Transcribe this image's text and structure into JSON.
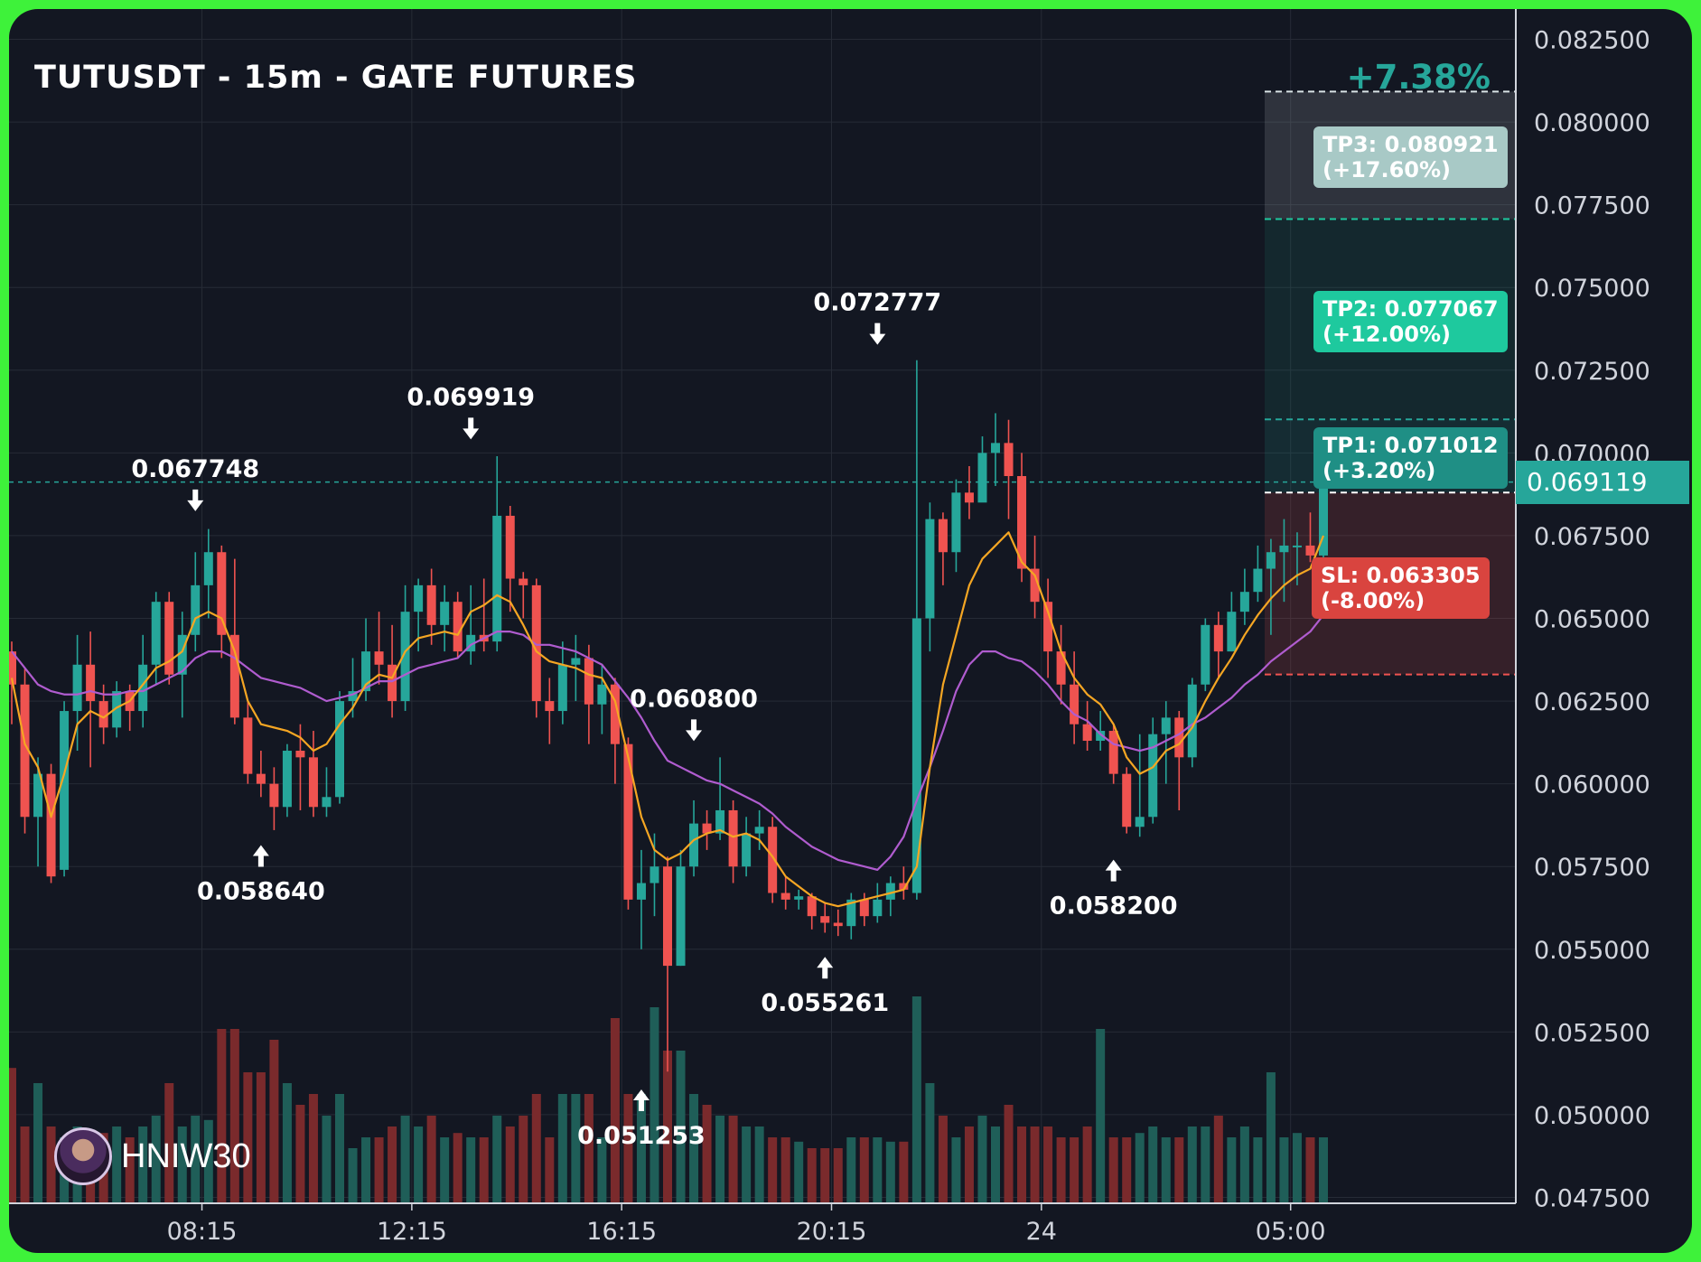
{
  "chart_data": {
    "type": "candlestick",
    "title": "TUTUSDT - 15m - GATE FUTURES",
    "change_label": "+7.38%",
    "current_price": 0.069119,
    "current_price_label": "0.069119",
    "y_ticks": [
      "0.082500",
      "0.080000",
      "0.077500",
      "0.075000",
      "0.072500",
      "0.070000",
      "0.067500",
      "0.065000",
      "0.062500",
      "0.060000",
      "0.057500",
      "0.055000",
      "0.052500",
      "0.050000",
      "0.047500"
    ],
    "y_tick_values": [
      0.0825,
      0.08,
      0.0775,
      0.075,
      0.0725,
      0.07,
      0.0675,
      0.065,
      0.0625,
      0.06,
      0.0575,
      0.055,
      0.0525,
      0.05,
      0.0475
    ],
    "ylim": [
      0.047,
      0.0835
    ],
    "x_ticks": [
      {
        "index": 14.5,
        "label": "08:15"
      },
      {
        "index": 30.5,
        "label": "12:15"
      },
      {
        "index": 46.5,
        "label": "16:15"
      },
      {
        "index": 62.5,
        "label": "20:15"
      },
      {
        "index": 78.5,
        "label": "24"
      },
      {
        "index": 97.5,
        "label": "05:00"
      }
    ],
    "levels": {
      "tp3": {
        "price": 0.080921,
        "label": "TP3: 0.080921",
        "pct": "(+17.60%)"
      },
      "tp2": {
        "price": 0.077067,
        "label": "TP2: 0.077067",
        "pct": "(+12.00%)"
      },
      "tp1": {
        "price": 0.071012,
        "label": "TP1: 0.071012",
        "pct": "(+3.20%)"
      },
      "entry": {
        "price": 0.0688
      },
      "sl": {
        "price": 0.063305,
        "label": "SL: 0.063305",
        "pct": "(-8.00%)"
      }
    },
    "annotations": [
      {
        "label": "0.067748",
        "index": 14,
        "price": 0.067748,
        "type": "high"
      },
      {
        "label": "0.058640",
        "index": 19,
        "price": 0.05864,
        "type": "low"
      },
      {
        "label": "0.069919",
        "index": 35,
        "price": 0.069919,
        "type": "high"
      },
      {
        "label": "0.060800",
        "index": 52,
        "price": 0.0608,
        "type": "high"
      },
      {
        "label": "0.051253",
        "index": 48,
        "price": 0.051253,
        "type": "low"
      },
      {
        "label": "0.072777",
        "index": 66,
        "price": 0.072777,
        "type": "high"
      },
      {
        "label": "0.055261",
        "index": 62,
        "price": 0.055261,
        "type": "low"
      },
      {
        "label": "0.058200",
        "index": 84,
        "price": 0.0582,
        "type": "low"
      }
    ],
    "candles": [
      [
        0.064,
        0.063,
        0.0643,
        0.0618
      ],
      [
        0.063,
        0.059,
        0.0635,
        0.0585
      ],
      [
        0.059,
        0.0603,
        0.0608,
        0.0575
      ],
      [
        0.0603,
        0.0572,
        0.0606,
        0.057
      ],
      [
        0.0574,
        0.0622,
        0.0625,
        0.0572
      ],
      [
        0.0622,
        0.0636,
        0.0645,
        0.061
      ],
      [
        0.0636,
        0.0625,
        0.0646,
        0.0605
      ],
      [
        0.0625,
        0.0617,
        0.063,
        0.0612
      ],
      [
        0.0617,
        0.0628,
        0.0631,
        0.0614
      ],
      [
        0.0628,
        0.0622,
        0.063,
        0.0616
      ],
      [
        0.0622,
        0.0636,
        0.0645,
        0.0617
      ],
      [
        0.0636,
        0.0655,
        0.0658,
        0.063
      ],
      [
        0.0655,
        0.0633,
        0.0658,
        0.063
      ],
      [
        0.0633,
        0.0645,
        0.0652,
        0.062
      ],
      [
        0.0645,
        0.066,
        0.067,
        0.064
      ],
      [
        0.066,
        0.067,
        0.0677,
        0.065
      ],
      [
        0.067,
        0.0645,
        0.0672,
        0.0638
      ],
      [
        0.0645,
        0.062,
        0.0668,
        0.0618
      ],
      [
        0.062,
        0.0603,
        0.0625,
        0.06
      ],
      [
        0.0603,
        0.06,
        0.061,
        0.0596
      ],
      [
        0.06,
        0.0593,
        0.0605,
        0.0586
      ],
      [
        0.0593,
        0.061,
        0.0612,
        0.059
      ],
      [
        0.061,
        0.0608,
        0.0618,
        0.0592
      ],
      [
        0.0608,
        0.0593,
        0.0616,
        0.059
      ],
      [
        0.0593,
        0.0596,
        0.0605,
        0.059
      ],
      [
        0.0596,
        0.0625,
        0.0628,
        0.0594
      ],
      [
        0.0625,
        0.0628,
        0.0638,
        0.062
      ],
      [
        0.0628,
        0.064,
        0.065,
        0.0625
      ],
      [
        0.064,
        0.0636,
        0.0652,
        0.063
      ],
      [
        0.0636,
        0.0625,
        0.0648,
        0.062
      ],
      [
        0.0625,
        0.0652,
        0.066,
        0.0622
      ],
      [
        0.0652,
        0.066,
        0.0662,
        0.064
      ],
      [
        0.066,
        0.0648,
        0.0665,
        0.0642
      ],
      [
        0.0648,
        0.0655,
        0.066,
        0.064
      ],
      [
        0.0655,
        0.064,
        0.0658,
        0.0638
      ],
      [
        0.064,
        0.0645,
        0.066,
        0.0636
      ],
      [
        0.0645,
        0.0643,
        0.0662,
        0.064
      ],
      [
        0.0643,
        0.0681,
        0.0699,
        0.064
      ],
      [
        0.0681,
        0.0662,
        0.0684,
        0.0652
      ],
      [
        0.0662,
        0.066,
        0.0664,
        0.065
      ],
      [
        0.066,
        0.0625,
        0.0662,
        0.062
      ],
      [
        0.0625,
        0.0622,
        0.0632,
        0.0612
      ],
      [
        0.0622,
        0.0636,
        0.0643,
        0.0618
      ],
      [
        0.0636,
        0.0638,
        0.0645,
        0.0625
      ],
      [
        0.0638,
        0.0624,
        0.0642,
        0.0612
      ],
      [
        0.0624,
        0.063,
        0.0636,
        0.0615
      ],
      [
        0.063,
        0.0612,
        0.0632,
        0.06
      ],
      [
        0.0612,
        0.0565,
        0.0614,
        0.0562
      ],
      [
        0.0565,
        0.057,
        0.058,
        0.055
      ],
      [
        0.057,
        0.0575,
        0.0585,
        0.056
      ],
      [
        0.0575,
        0.0545,
        0.0578,
        0.0513
      ],
      [
        0.0545,
        0.0575,
        0.058,
        0.0545
      ],
      [
        0.0575,
        0.0588,
        0.0595,
        0.0572
      ],
      [
        0.0588,
        0.0585,
        0.0592,
        0.058
      ],
      [
        0.0585,
        0.0592,
        0.0608,
        0.0583
      ],
      [
        0.0592,
        0.0575,
        0.0595,
        0.057
      ],
      [
        0.0575,
        0.0585,
        0.059,
        0.0572
      ],
      [
        0.0585,
        0.0587,
        0.0592,
        0.058
      ],
      [
        0.0587,
        0.0567,
        0.059,
        0.0564
      ],
      [
        0.0567,
        0.0565,
        0.0572,
        0.0562
      ],
      [
        0.0565,
        0.0566,
        0.0568,
        0.0562
      ],
      [
        0.0566,
        0.056,
        0.0567,
        0.0556
      ],
      [
        0.056,
        0.0558,
        0.0564,
        0.0555
      ],
      [
        0.0558,
        0.0557,
        0.0562,
        0.0554
      ],
      [
        0.0557,
        0.0565,
        0.0567,
        0.0553
      ],
      [
        0.0565,
        0.056,
        0.0567,
        0.0557
      ],
      [
        0.056,
        0.0565,
        0.057,
        0.0558
      ],
      [
        0.0565,
        0.057,
        0.0572,
        0.056
      ],
      [
        0.057,
        0.0568,
        0.0575,
        0.0565
      ],
      [
        0.0567,
        0.065,
        0.0728,
        0.0565
      ],
      [
        0.065,
        0.068,
        0.0685,
        0.064
      ],
      [
        0.068,
        0.067,
        0.0682,
        0.066
      ],
      [
        0.067,
        0.0688,
        0.0692,
        0.0664
      ],
      [
        0.0688,
        0.0685,
        0.0696,
        0.068
      ],
      [
        0.0685,
        0.07,
        0.0705,
        0.0688
      ],
      [
        0.07,
        0.0703,
        0.0712,
        0.069
      ],
      [
        0.0703,
        0.0693,
        0.071,
        0.068
      ],
      [
        0.0693,
        0.0665,
        0.07,
        0.0661
      ],
      [
        0.0665,
        0.0655,
        0.0675,
        0.065
      ],
      [
        0.0655,
        0.064,
        0.0662,
        0.0632
      ],
      [
        0.064,
        0.063,
        0.0648,
        0.0624
      ],
      [
        0.063,
        0.0618,
        0.064,
        0.0612
      ],
      [
        0.0618,
        0.0613,
        0.0625,
        0.061
      ],
      [
        0.0613,
        0.0616,
        0.0622,
        0.061
      ],
      [
        0.0616,
        0.0603,
        0.0618,
        0.06
      ],
      [
        0.0603,
        0.0587,
        0.0605,
        0.0585
      ],
      [
        0.0587,
        0.059,
        0.0615,
        0.0584
      ],
      [
        0.059,
        0.0615,
        0.062,
        0.0588
      ],
      [
        0.0615,
        0.062,
        0.0625,
        0.06
      ],
      [
        0.062,
        0.0608,
        0.0622,
        0.0592
      ],
      [
        0.0608,
        0.063,
        0.0632,
        0.0605
      ],
      [
        0.063,
        0.0648,
        0.065,
        0.0628
      ],
      [
        0.0648,
        0.064,
        0.0652,
        0.0632
      ],
      [
        0.064,
        0.0652,
        0.0658,
        0.064
      ],
      [
        0.0652,
        0.0658,
        0.0665,
        0.0648
      ],
      [
        0.0658,
        0.0665,
        0.0672,
        0.0655
      ],
      [
        0.0665,
        0.067,
        0.0674,
        0.0645
      ],
      [
        0.067,
        0.0672,
        0.068,
        0.0655
      ],
      [
        0.0672,
        0.0672,
        0.0676,
        0.066
      ],
      [
        0.0672,
        0.0669,
        0.0682,
        0.0667
      ],
      [
        0.0669,
        0.0691,
        0.0696,
        0.0668
      ]
    ],
    "ema_fast": [
      0.0632,
      0.0612,
      0.0605,
      0.059,
      0.0603,
      0.0618,
      0.0622,
      0.062,
      0.0623,
      0.0625,
      0.063,
      0.0635,
      0.0637,
      0.064,
      0.065,
      0.0652,
      0.065,
      0.064,
      0.0625,
      0.0618,
      0.0617,
      0.0616,
      0.0614,
      0.061,
      0.0612,
      0.0618,
      0.0623,
      0.063,
      0.0633,
      0.0632,
      0.064,
      0.0644,
      0.0645,
      0.0646,
      0.0645,
      0.0652,
      0.0654,
      0.0657,
      0.0655,
      0.0648,
      0.064,
      0.0637,
      0.0636,
      0.0635,
      0.0633,
      0.0632,
      0.0625,
      0.0608,
      0.059,
      0.058,
      0.0577,
      0.0579,
      0.0583,
      0.0585,
      0.0586,
      0.0584,
      0.0585,
      0.0583,
      0.0578,
      0.0572,
      0.0569,
      0.0566,
      0.0564,
      0.0563,
      0.0564,
      0.0565,
      0.0566,
      0.0567,
      0.0568,
      0.0575,
      0.0605,
      0.063,
      0.0645,
      0.066,
      0.0668,
      0.0672,
      0.0676,
      0.0667,
      0.0663,
      0.0652,
      0.064,
      0.0632,
      0.0627,
      0.0624,
      0.0618,
      0.0608,
      0.0603,
      0.0605,
      0.061,
      0.0612,
      0.0617,
      0.0625,
      0.0632,
      0.0638,
      0.0645,
      0.0651,
      0.0656,
      0.066,
      0.0663,
      0.0665,
      0.0675
    ],
    "ema_slow": [
      0.064,
      0.0635,
      0.063,
      0.0628,
      0.0627,
      0.0627,
      0.0628,
      0.0627,
      0.0627,
      0.0628,
      0.0628,
      0.063,
      0.0632,
      0.0634,
      0.0638,
      0.064,
      0.064,
      0.0638,
      0.0635,
      0.0632,
      0.0631,
      0.063,
      0.0629,
      0.0627,
      0.0625,
      0.0626,
      0.0627,
      0.0629,
      0.0631,
      0.0631,
      0.0633,
      0.0635,
      0.0636,
      0.0637,
      0.0638,
      0.0642,
      0.0644,
      0.0646,
      0.0646,
      0.0645,
      0.0642,
      0.0642,
      0.0641,
      0.064,
      0.0638,
      0.0636,
      0.0631,
      0.0626,
      0.062,
      0.0613,
      0.0607,
      0.0605,
      0.0603,
      0.0601,
      0.06,
      0.0598,
      0.0596,
      0.0594,
      0.0591,
      0.0587,
      0.0584,
      0.0581,
      0.0579,
      0.0577,
      0.0576,
      0.0575,
      0.0574,
      0.0578,
      0.0584,
      0.0595,
      0.0605,
      0.0616,
      0.0628,
      0.0636,
      0.064,
      0.064,
      0.0638,
      0.0637,
      0.0634,
      0.063,
      0.0625,
      0.0621,
      0.0619,
      0.0615,
      0.0612,
      0.0611,
      0.061,
      0.0611,
      0.0613,
      0.0615,
      0.0618,
      0.062,
      0.0623,
      0.0626,
      0.063,
      0.0633,
      0.0637,
      0.064,
      0.0643,
      0.0646,
      0.0651
    ],
    "volumes": [
      0.62,
      0.35,
      0.55,
      0.35,
      0.3,
      0.35,
      0.3,
      0.32,
      0.35,
      0.3,
      0.35,
      0.4,
      0.55,
      0.35,
      0.4,
      0.38,
      0.8,
      0.8,
      0.6,
      0.6,
      0.75,
      0.55,
      0.45,
      0.5,
      0.4,
      0.5,
      0.25,
      0.3,
      0.3,
      0.35,
      0.4,
      0.35,
      0.4,
      0.3,
      0.32,
      0.3,
      0.3,
      0.4,
      0.35,
      0.4,
      0.5,
      0.3,
      0.5,
      0.5,
      0.5,
      0.3,
      0.85,
      0.5,
      0.5,
      0.9,
      0.7,
      0.7,
      0.5,
      0.45,
      0.4,
      0.4,
      0.35,
      0.35,
      0.3,
      0.3,
      0.28,
      0.25,
      0.25,
      0.25,
      0.3,
      0.3,
      0.3,
      0.28,
      0.28,
      0.95,
      0.55,
      0.4,
      0.3,
      0.35,
      0.4,
      0.35,
      0.45,
      0.35,
      0.35,
      0.35,
      0.3,
      0.3,
      0.35,
      0.8,
      0.3,
      0.3,
      0.32,
      0.35,
      0.3,
      0.3,
      0.35,
      0.35,
      0.4,
      0.3,
      0.35,
      0.3,
      0.6,
      0.3,
      0.32,
      0.3,
      0.3
    ]
  },
  "watermark": "HNIW30"
}
